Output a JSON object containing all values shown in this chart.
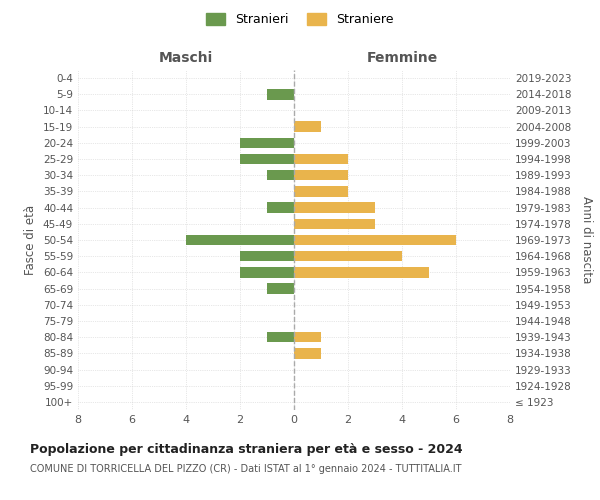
{
  "age_groups": [
    "100+",
    "95-99",
    "90-94",
    "85-89",
    "80-84",
    "75-79",
    "70-74",
    "65-69",
    "60-64",
    "55-59",
    "50-54",
    "45-49",
    "40-44",
    "35-39",
    "30-34",
    "25-29",
    "20-24",
    "15-19",
    "10-14",
    "5-9",
    "0-4"
  ],
  "birth_years": [
    "≤ 1923",
    "1924-1928",
    "1929-1933",
    "1934-1938",
    "1939-1943",
    "1944-1948",
    "1949-1953",
    "1954-1958",
    "1959-1963",
    "1964-1968",
    "1969-1973",
    "1974-1978",
    "1979-1983",
    "1984-1988",
    "1989-1993",
    "1994-1998",
    "1999-2003",
    "2004-2008",
    "2009-2013",
    "2014-2018",
    "2019-2023"
  ],
  "males": [
    0,
    0,
    0,
    0,
    1,
    0,
    0,
    1,
    2,
    2,
    4,
    0,
    1,
    0,
    1,
    2,
    2,
    0,
    0,
    1,
    0
  ],
  "females": [
    0,
    0,
    0,
    1,
    1,
    0,
    0,
    0,
    5,
    4,
    6,
    3,
    3,
    2,
    2,
    2,
    0,
    1,
    0,
    0,
    0
  ],
  "male_color": "#6a994e",
  "female_color": "#e9b44c",
  "title": "Popolazione per cittadinanza straniera per età e sesso - 2024",
  "subtitle": "COMUNE DI TORRICELLA DEL PIZZO (CR) - Dati ISTAT al 1° gennaio 2024 - TUTTITALIA.IT",
  "legend_male": "Stranieri",
  "legend_female": "Straniere",
  "xlabel_left": "Maschi",
  "xlabel_right": "Femmine",
  "ylabel_left": "Fasce di età",
  "ylabel_right": "Anni di nascita",
  "xlim": 8,
  "background_color": "#ffffff",
  "grid_color": "#d0d0d0"
}
